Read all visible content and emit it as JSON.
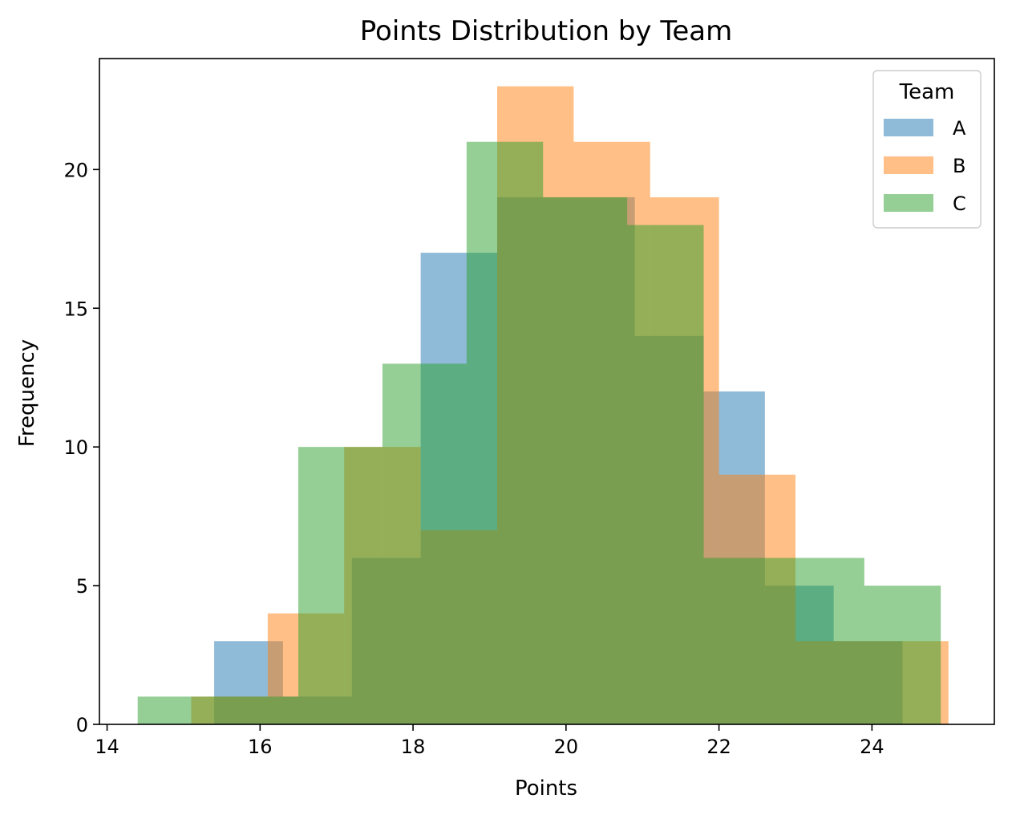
{
  "chart_data": {
    "type": "histogram",
    "title": "Points Distribution by Team",
    "xlabel": "Points",
    "ylabel": "Frequency",
    "xlim": [
      13.9,
      25.6
    ],
    "ylim": [
      0,
      24
    ],
    "xticks": [
      14,
      16,
      18,
      20,
      22,
      24
    ],
    "yticks": [
      0,
      5,
      10,
      15,
      20
    ],
    "grid": false,
    "legend": {
      "title": "Team",
      "placement": "top-right"
    },
    "series": [
      {
        "name": "A",
        "color": "#1f77b4",
        "bins": [
          {
            "x0": 15.4,
            "x1": 16.3,
            "count": 3
          },
          {
            "x0": 16.3,
            "x1": 17.2,
            "count": 1
          },
          {
            "x0": 17.2,
            "x1": 18.1,
            "count": 6
          },
          {
            "x0": 18.1,
            "x1": 19.1,
            "count": 17
          },
          {
            "x0": 19.1,
            "x1": 20.0,
            "count": 19
          },
          {
            "x0": 20.0,
            "x1": 20.9,
            "count": 19
          },
          {
            "x0": 20.9,
            "x1": 21.8,
            "count": 14
          },
          {
            "x0": 21.8,
            "x1": 22.6,
            "count": 12
          },
          {
            "x0": 22.6,
            "x1": 23.5,
            "count": 5
          },
          {
            "x0": 23.5,
            "x1": 24.4,
            "count": 3
          }
        ]
      },
      {
        "name": "B",
        "color": "#ff7f0e",
        "bins": [
          {
            "x0": 15.1,
            "x1": 16.1,
            "count": 1
          },
          {
            "x0": 16.1,
            "x1": 17.1,
            "count": 4
          },
          {
            "x0": 17.1,
            "x1": 18.1,
            "count": 10
          },
          {
            "x0": 18.1,
            "x1": 19.1,
            "count": 7
          },
          {
            "x0": 19.1,
            "x1": 20.1,
            "count": 23
          },
          {
            "x0": 20.1,
            "x1": 21.1,
            "count": 21
          },
          {
            "x0": 21.1,
            "x1": 22.0,
            "count": 19
          },
          {
            "x0": 22.0,
            "x1": 23.0,
            "count": 9
          },
          {
            "x0": 23.0,
            "x1": 24.0,
            "count": 3
          },
          {
            "x0": 24.0,
            "x1": 25.0,
            "count": 3
          }
        ]
      },
      {
        "name": "C",
        "color": "#2ca02c",
        "bins": [
          {
            "x0": 14.4,
            "x1": 15.5,
            "count": 1
          },
          {
            "x0": 15.5,
            "x1": 16.5,
            "count": 1
          },
          {
            "x0": 16.5,
            "x1": 17.6,
            "count": 10
          },
          {
            "x0": 17.6,
            "x1": 18.7,
            "count": 13
          },
          {
            "x0": 18.7,
            "x1": 19.7,
            "count": 21
          },
          {
            "x0": 19.7,
            "x1": 20.8,
            "count": 19
          },
          {
            "x0": 20.8,
            "x1": 21.8,
            "count": 18
          },
          {
            "x0": 21.8,
            "x1": 22.9,
            "count": 6
          },
          {
            "x0": 22.9,
            "x1": 23.9,
            "count": 6
          },
          {
            "x0": 23.9,
            "x1": 24.9,
            "count": 5
          }
        ]
      }
    ]
  }
}
